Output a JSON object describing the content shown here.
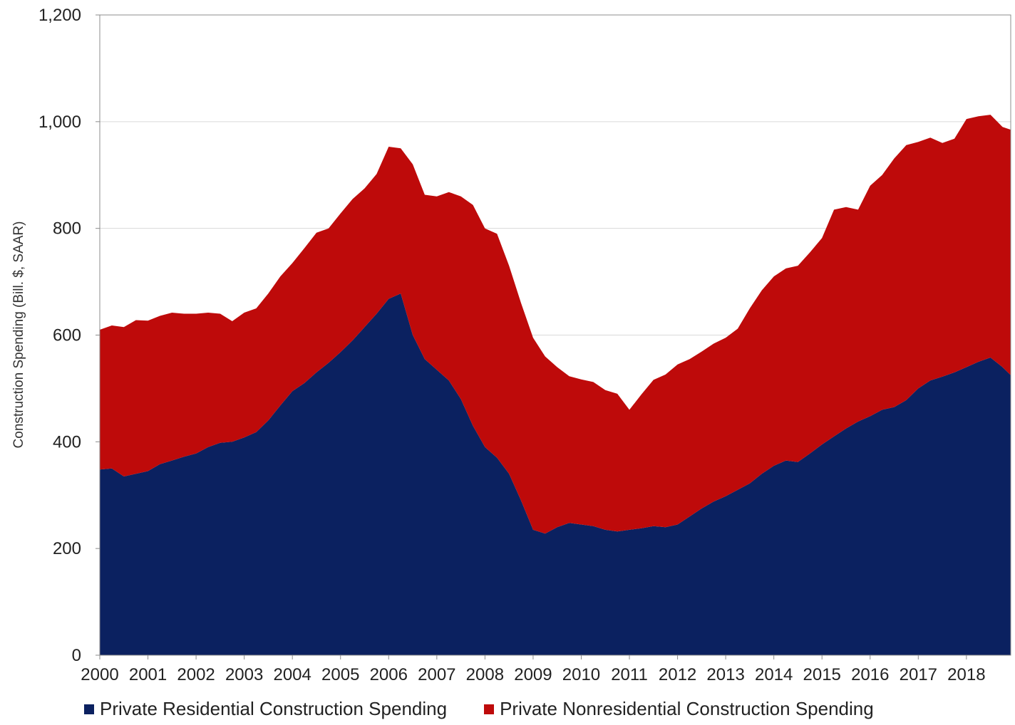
{
  "chart_data": {
    "type": "area",
    "stacked": true,
    "title": "",
    "xlabel": "",
    "ylabel": "Construction Spending (Bill. $, SAAR)",
    "ylim": [
      0,
      1200
    ],
    "xlim": [
      2000,
      2018.92
    ],
    "yticks": [
      0,
      200,
      400,
      600,
      800,
      1000,
      1200
    ],
    "ytick_labels": [
      "0",
      "200",
      "400",
      "600",
      "800",
      "1,000",
      "1,200"
    ],
    "xticks": [
      2000,
      2001,
      2002,
      2003,
      2004,
      2005,
      2006,
      2007,
      2008,
      2009,
      2010,
      2011,
      2012,
      2013,
      2014,
      2015,
      2016,
      2017,
      2018
    ],
    "xtick_labels": [
      "2000",
      "2001",
      "2002",
      "2003",
      "2004",
      "2005",
      "2006",
      "2007",
      "2008",
      "2009",
      "2010",
      "2011",
      "2012",
      "2013",
      "2014",
      "2015",
      "2016",
      "2017",
      "2018"
    ],
    "grid": "horizontal",
    "legend_position": "bottom",
    "x": [
      2000.0,
      2000.25,
      2000.5,
      2000.75,
      2001.0,
      2001.25,
      2001.5,
      2001.75,
      2002.0,
      2002.25,
      2002.5,
      2002.75,
      2003.0,
      2003.25,
      2003.5,
      2003.75,
      2004.0,
      2004.25,
      2004.5,
      2004.75,
      2005.0,
      2005.25,
      2005.5,
      2005.75,
      2006.0,
      2006.25,
      2006.5,
      2006.75,
      2007.0,
      2007.25,
      2007.5,
      2007.75,
      2008.0,
      2008.25,
      2008.5,
      2008.75,
      2009.0,
      2009.25,
      2009.5,
      2009.75,
      2010.0,
      2010.25,
      2010.5,
      2010.75,
      2011.0,
      2011.25,
      2011.5,
      2011.75,
      2012.0,
      2012.25,
      2012.5,
      2012.75,
      2013.0,
      2013.25,
      2013.5,
      2013.75,
      2014.0,
      2014.25,
      2014.5,
      2014.75,
      2015.0,
      2015.25,
      2015.5,
      2015.75,
      2016.0,
      2016.25,
      2016.5,
      2016.75,
      2017.0,
      2017.25,
      2017.5,
      2017.75,
      2018.0,
      2018.25,
      2018.5,
      2018.75,
      2018.92
    ],
    "series": [
      {
        "name": "Private Residential Construction Spending",
        "color": "#0b2160",
        "values": [
          348,
          350,
          335,
          340,
          345,
          358,
          365,
          372,
          378,
          390,
          398,
          400,
          408,
          418,
          440,
          468,
          495,
          510,
          530,
          548,
          568,
          590,
          615,
          640,
          668,
          678,
          600,
          555,
          535,
          515,
          480,
          430,
          390,
          370,
          340,
          290,
          235,
          228,
          240,
          248,
          245,
          242,
          235,
          232,
          235,
          238,
          242,
          240,
          245,
          260,
          275,
          288,
          298,
          310,
          322,
          340,
          355,
          365,
          362,
          378,
          395,
          410,
          425,
          438,
          448,
          460,
          465,
          478,
          500,
          515,
          522,
          530,
          540,
          550,
          558,
          540,
          525
        ]
      },
      {
        "name": "Private Nonresidential Construction Spending",
        "color": "#be0a0a",
        "values": [
          262,
          268,
          280,
          288,
          282,
          278,
          277,
          268,
          262,
          252,
          242,
          226,
          234,
          232,
          238,
          242,
          240,
          253,
          262,
          252,
          260,
          265,
          260,
          262,
          285,
          272,
          320,
          308,
          325,
          353,
          380,
          414,
          410,
          420,
          390,
          370,
          360,
          332,
          300,
          275,
          272,
          270,
          262,
          258,
          225,
          251,
          274,
          286,
          300,
          295,
          294,
          296,
          297,
          302,
          328,
          344,
          355,
          360,
          368,
          377,
          387,
          425,
          415,
          397,
          432,
          440,
          466,
          478,
          462,
          455,
          438,
          438,
          465,
          460,
          455,
          450,
          460
        ]
      }
    ]
  }
}
